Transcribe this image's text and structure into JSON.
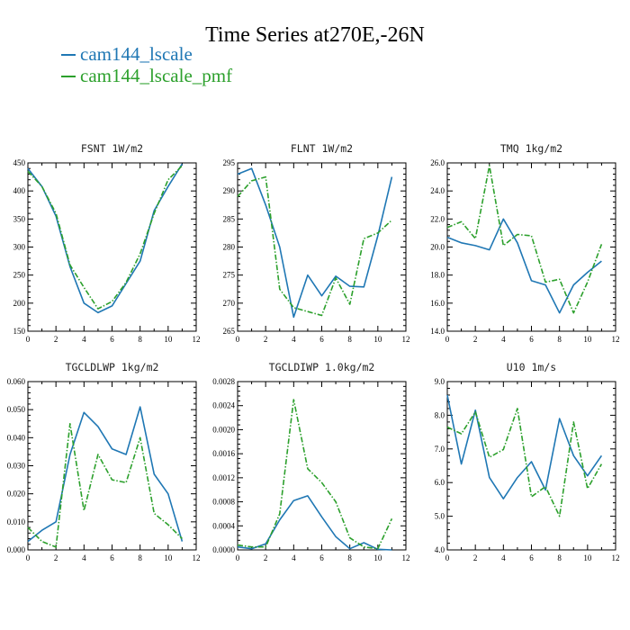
{
  "title": "Time Series at270E,-26N",
  "legend": [
    {
      "label": "cam144_lscale",
      "color": "#1f77b4"
    },
    {
      "label": "cam144_lscale_pmf",
      "color": "#2ca02c"
    }
  ],
  "chart_data": [
    {
      "type": "line",
      "title": "FSNT   1W/m2",
      "x": [
        0,
        1,
        2,
        3,
        4,
        5,
        6,
        7,
        8,
        9,
        10,
        11
      ],
      "xlim": [
        0,
        12
      ],
      "xticks": [
        0,
        2,
        4,
        6,
        8,
        10,
        12
      ],
      "xtick_labels": [
        "0",
        "2",
        "4",
        "6",
        "8",
        "10",
        "12"
      ],
      "ylim": [
        150,
        450
      ],
      "yticks": [
        150,
        200,
        250,
        300,
        350,
        400,
        450
      ],
      "ytick_labels": [
        "150",
        "200",
        "250",
        "300",
        "350",
        "400",
        "450"
      ],
      "series": [
        {
          "name": "cam144_lscale",
          "values": [
            440,
            408,
            355,
            265,
            200,
            183,
            195,
            235,
            275,
            365,
            408,
            448
          ]
        },
        {
          "name": "cam144_lscale_pmf",
          "values": [
            435,
            408,
            360,
            268,
            228,
            190,
            203,
            237,
            288,
            360,
            420,
            445
          ]
        }
      ]
    },
    {
      "type": "line",
      "title": "FLNT   1W/m2",
      "x": [
        0,
        1,
        2,
        3,
        4,
        5,
        6,
        7,
        8,
        9,
        10,
        11
      ],
      "xlim": [
        0,
        12
      ],
      "xticks": [
        0,
        2,
        4,
        6,
        8,
        10,
        12
      ],
      "xtick_labels": [
        "0",
        "2",
        "4",
        "6",
        "8",
        "10",
        "12"
      ],
      "ylim": [
        265,
        295
      ],
      "yticks": [
        265,
        270,
        275,
        280,
        285,
        290,
        295
      ],
      "ytick_labels": [
        "265",
        "270",
        "275",
        "280",
        "285",
        "290",
        "295"
      ],
      "series": [
        {
          "name": "cam144_lscale",
          "values": [
            293,
            294,
            287.5,
            280,
            267.5,
            275,
            271.3,
            274.8,
            273,
            272.9,
            282,
            292.5
          ]
        },
        {
          "name": "cam144_lscale_pmf",
          "values": [
            289,
            291.8,
            292.5,
            272.5,
            269.2,
            268.5,
            267.8,
            274.5,
            269.8,
            281.5,
            282.5,
            284.8
          ]
        }
      ]
    },
    {
      "type": "line",
      "title": "TMQ   1kg/m2",
      "x": [
        0,
        1,
        2,
        3,
        4,
        5,
        6,
        7,
        8,
        9,
        10,
        11
      ],
      "xlim": [
        0,
        12
      ],
      "xticks": [
        0,
        2,
        4,
        6,
        8,
        10,
        12
      ],
      "xtick_labels": [
        "0",
        "2",
        "4",
        "6",
        "8",
        "10",
        "12"
      ],
      "ylim": [
        14,
        26
      ],
      "yticks": [
        14,
        16,
        18,
        20,
        22,
        24,
        26
      ],
      "ytick_labels": [
        "14.0",
        "16.0",
        "18.0",
        "20.0",
        "22.0",
        "24.0",
        "26.0"
      ],
      "series": [
        {
          "name": "cam144_lscale",
          "values": [
            20.7,
            20.3,
            20.1,
            19.8,
            22.0,
            20.3,
            17.6,
            17.3,
            15.3,
            17.3,
            18.2,
            19.0
          ]
        },
        {
          "name": "cam144_lscale_pmf",
          "values": [
            21.4,
            21.8,
            20.6,
            25.8,
            20.1,
            20.9,
            20.8,
            17.5,
            17.7,
            15.3,
            17.5,
            20.2
          ]
        }
      ]
    },
    {
      "type": "line",
      "title": "TGCLDLWP   1kg/m2",
      "x": [
        0,
        1,
        2,
        3,
        4,
        5,
        6,
        7,
        8,
        9,
        10,
        11
      ],
      "xlim": [
        0,
        12
      ],
      "xticks": [
        0,
        2,
        4,
        6,
        8,
        10,
        12
      ],
      "xtick_labels": [
        "0",
        "2",
        "4",
        "6",
        "8",
        "10",
        "12"
      ],
      "ylim": [
        0,
        0.06
      ],
      "yticks": [
        0,
        0.01,
        0.02,
        0.03,
        0.04,
        0.05,
        0.06
      ],
      "ytick_labels": [
        "0.000",
        "0.010",
        "0.020",
        "0.030",
        "0.040",
        "0.050",
        "0.060"
      ],
      "series": [
        {
          "name": "cam144_lscale",
          "values": [
            0.003,
            0.007,
            0.01,
            0.034,
            0.049,
            0.044,
            0.036,
            0.034,
            0.051,
            0.027,
            0.02,
            0.003
          ]
        },
        {
          "name": "cam144_lscale_pmf",
          "values": [
            0.008,
            0.003,
            0.001,
            0.045,
            0.014,
            0.034,
            0.025,
            0.024,
            0.04,
            0.013,
            0.009,
            0.004
          ]
        }
      ]
    },
    {
      "type": "line",
      "title": "TGCLDIWP   1.0kg/m2",
      "x": [
        0,
        1,
        2,
        3,
        4,
        5,
        6,
        7,
        8,
        9,
        10,
        11
      ],
      "xlim": [
        0,
        12
      ],
      "xticks": [
        0,
        2,
        4,
        6,
        8,
        10,
        12
      ],
      "xtick_labels": [
        "0",
        "2",
        "4",
        "6",
        "8",
        "10",
        "12"
      ],
      "ylim": [
        0,
        0.0028
      ],
      "yticks": [
        0,
        0.0004,
        0.0008,
        0.0012,
        0.0016,
        0.002,
        0.0024,
        0.0028
      ],
      "ytick_labels": [
        "0.0000",
        "0.0004",
        "0.0008",
        "0.0012",
        "0.0016",
        "0.0020",
        "0.0024",
        "0.0028"
      ],
      "series": [
        {
          "name": "cam144_lscale",
          "values": [
            5e-05,
            2e-05,
            0.0001,
            0.0005,
            0.00082,
            0.0009,
            0.00055,
            0.00022,
            2e-05,
            0.00012,
            1e-05,
            0.0
          ]
        },
        {
          "name": "cam144_lscale_pmf",
          "values": [
            8e-05,
            5e-05,
            5e-05,
            0.0006,
            0.0025,
            0.00135,
            0.00112,
            0.0008,
            0.0002,
            5e-05,
            2e-05,
            0.00052
          ]
        }
      ]
    },
    {
      "type": "line",
      "title": "U10   1m/s",
      "x": [
        0,
        1,
        2,
        3,
        4,
        5,
        6,
        7,
        8,
        9,
        10,
        11
      ],
      "xlim": [
        0,
        12
      ],
      "xticks": [
        0,
        2,
        4,
        6,
        8,
        10,
        12
      ],
      "xtick_labels": [
        "0",
        "2",
        "4",
        "6",
        "8",
        "10",
        "12"
      ],
      "ylim": [
        4,
        9
      ],
      "yticks": [
        4,
        5,
        6,
        7,
        8,
        9
      ],
      "ytick_labels": [
        "4.0",
        "5.0",
        "6.0",
        "7.0",
        "8.0",
        "9.0"
      ],
      "series": [
        {
          "name": "cam144_lscale",
          "values": [
            8.6,
            6.55,
            8.15,
            6.15,
            5.52,
            6.15,
            6.62,
            5.78,
            7.9,
            6.8,
            6.2,
            6.8
          ]
        },
        {
          "name": "cam144_lscale_pmf",
          "values": [
            7.65,
            7.45,
            8.1,
            6.75,
            6.98,
            8.2,
            5.58,
            5.88,
            5.0,
            7.8,
            5.82,
            6.55
          ]
        }
      ]
    }
  ]
}
